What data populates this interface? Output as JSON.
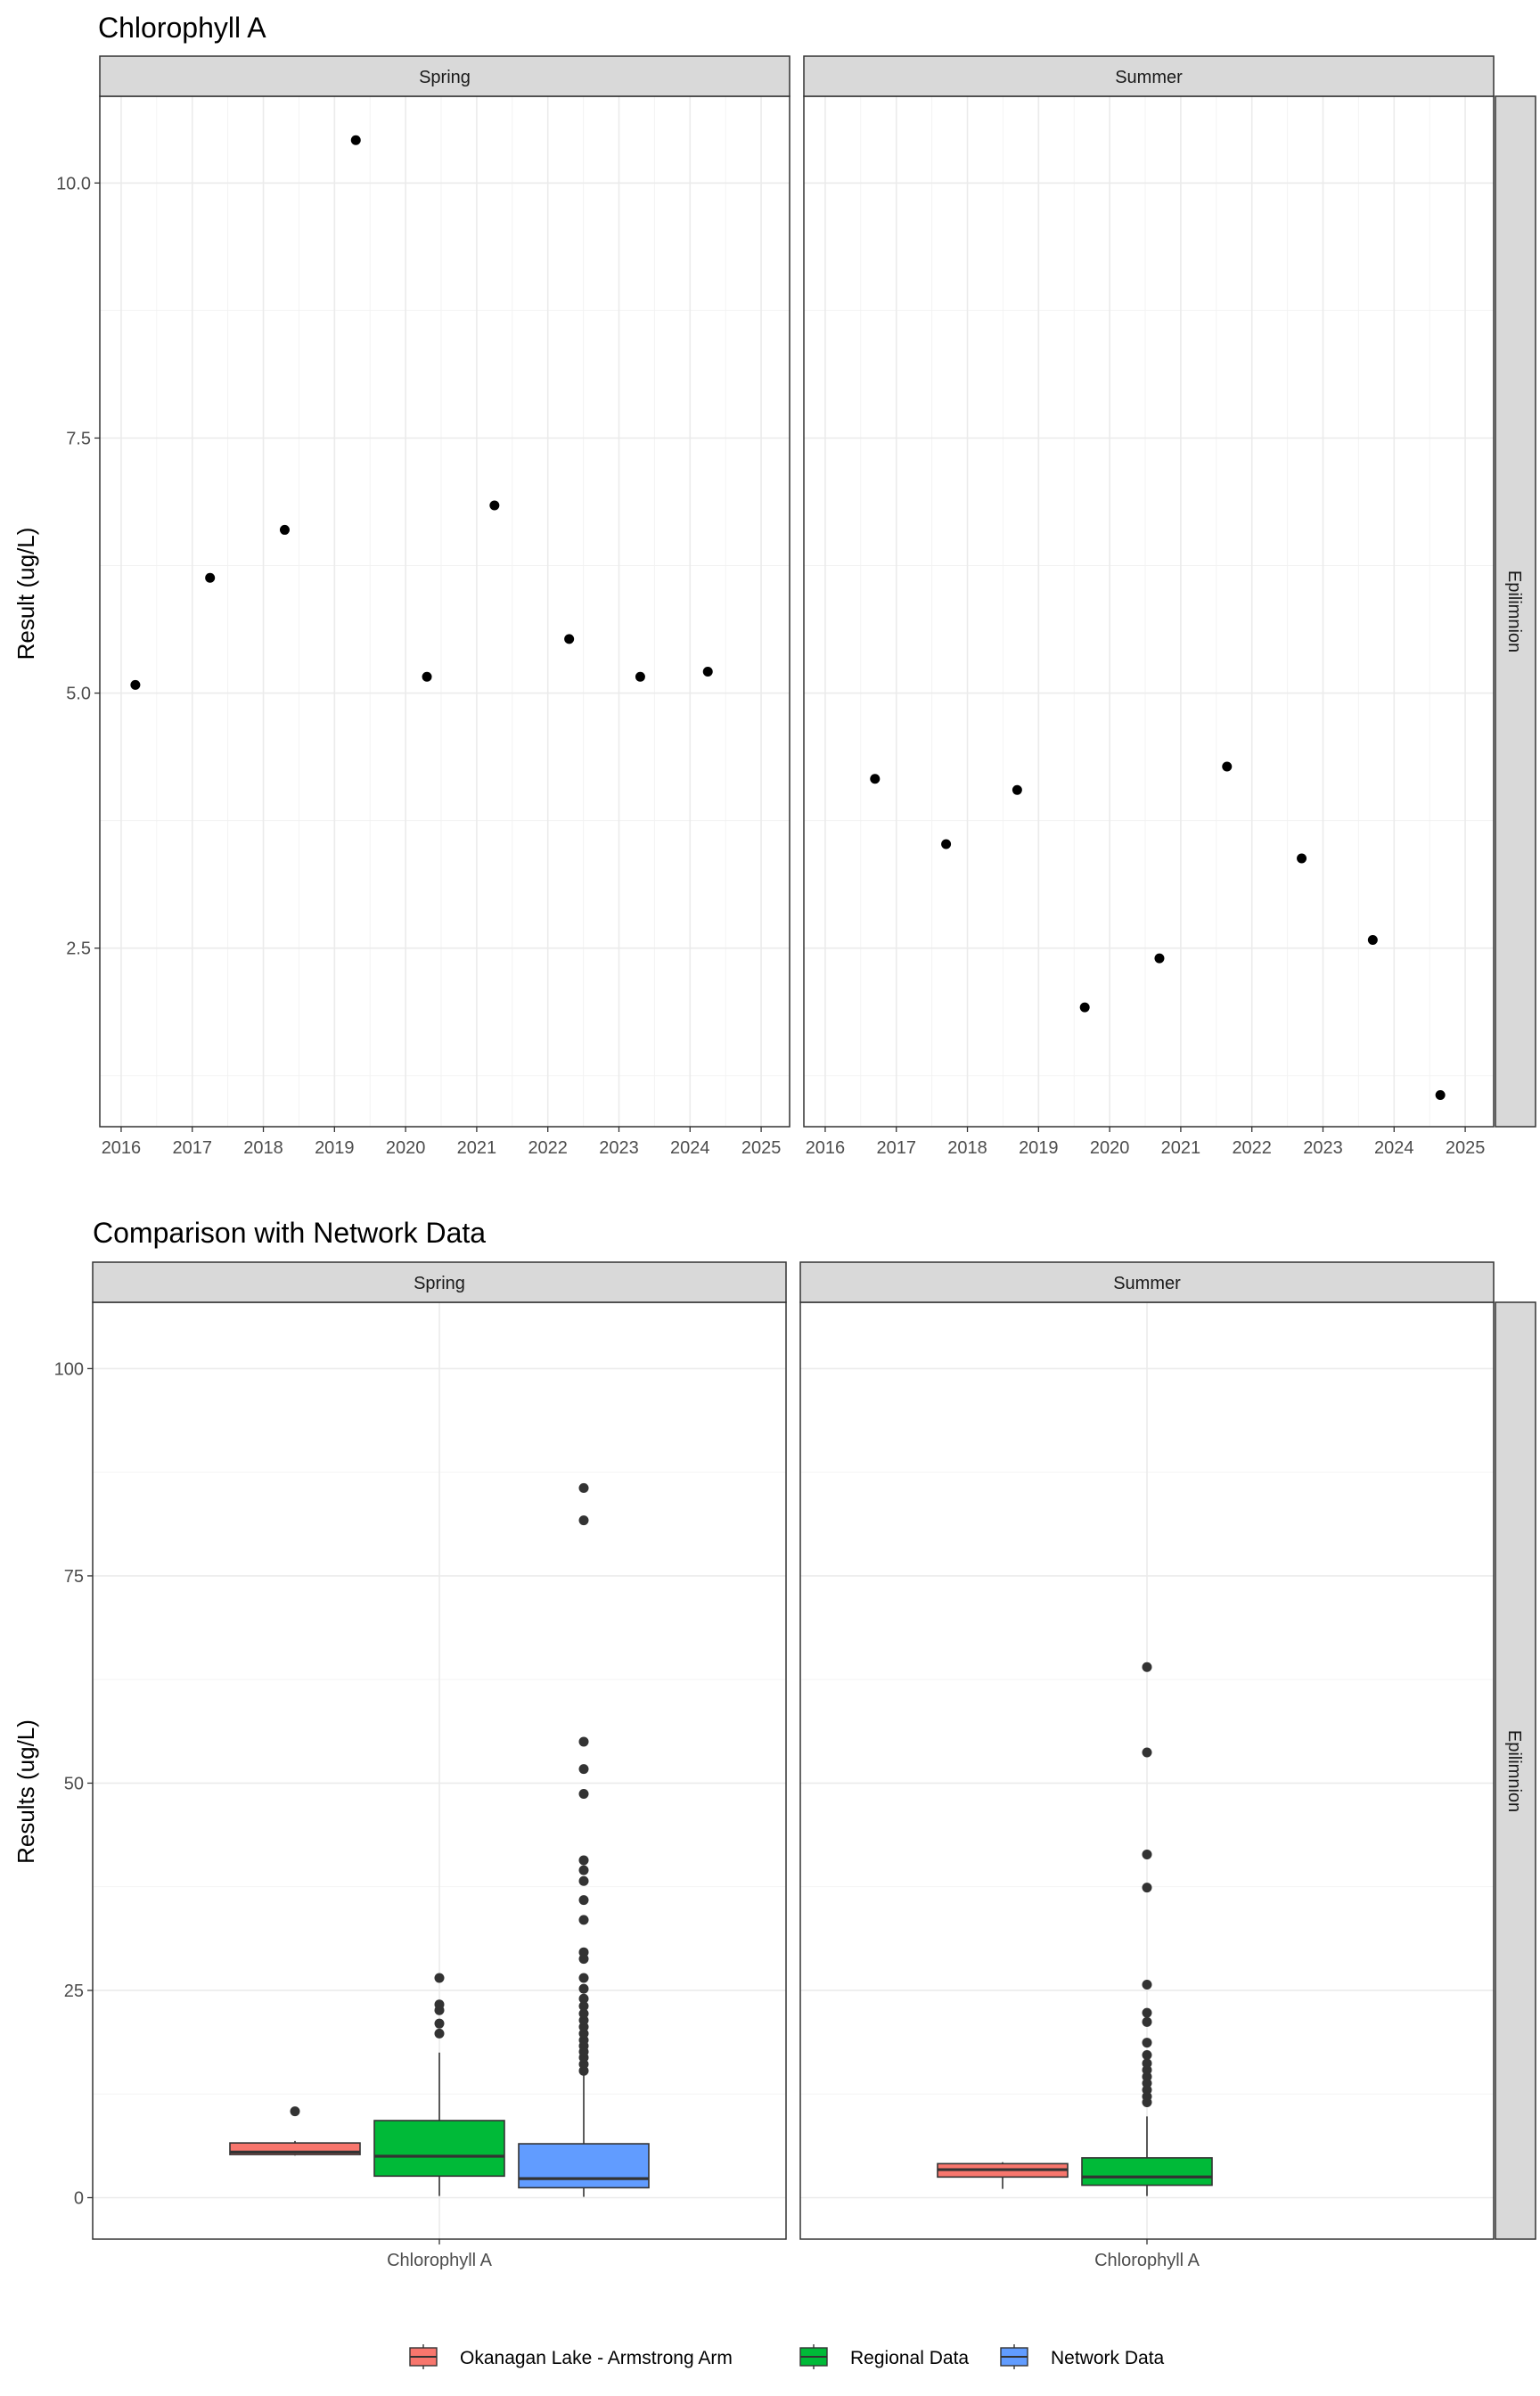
{
  "chart_data": [
    {
      "type": "scatter",
      "title": "Chlorophyll A",
      "ylabel": "Result (ug/L)",
      "xlabel": "",
      "ylim": [
        0.75,
        10.85
      ],
      "xlim": [
        2015.7,
        2025.4
      ],
      "yticks": [
        2.5,
        5.0,
        7.5,
        10.0
      ],
      "ytick_labels": [
        "2.5",
        "5.0",
        "7.5",
        "10.0"
      ],
      "xticks": [
        2016,
        2017,
        2018,
        2019,
        2020,
        2021,
        2022,
        2023,
        2024,
        2025
      ],
      "xtick_labels": [
        "2016",
        "2017",
        "2018",
        "2019",
        "2020",
        "2021",
        "2022",
        "2023",
        "2024",
        "2025"
      ],
      "row_strip": "Epilimnion",
      "grid": true,
      "panels": [
        {
          "strip": "Spring",
          "points": [
            {
              "x": 2016.2,
              "y": 5.08
            },
            {
              "x": 2017.25,
              "y": 6.13
            },
            {
              "x": 2018.3,
              "y": 6.6
            },
            {
              "x": 2019.3,
              "y": 10.42
            },
            {
              "x": 2020.3,
              "y": 5.16
            },
            {
              "x": 2021.25,
              "y": 6.84
            },
            {
              "x": 2022.3,
              "y": 5.53
            },
            {
              "x": 2023.3,
              "y": 5.16
            },
            {
              "x": 2024.25,
              "y": 5.21
            }
          ]
        },
        {
          "strip": "Summer",
          "points": [
            {
              "x": 2016.7,
              "y": 4.16
            },
            {
              "x": 2017.7,
              "y": 3.52
            },
            {
              "x": 2018.7,
              "y": 4.05
            },
            {
              "x": 2019.65,
              "y": 1.92
            },
            {
              "x": 2020.7,
              "y": 2.4
            },
            {
              "x": 2021.65,
              "y": 4.28
            },
            {
              "x": 2022.7,
              "y": 3.38
            },
            {
              "x": 2023.7,
              "y": 2.58
            },
            {
              "x": 2024.65,
              "y": 1.06
            }
          ]
        }
      ]
    },
    {
      "type": "box",
      "title": "Comparison with Network Data",
      "ylabel": "Results (ug/L)",
      "xlabel": "",
      "ylim": [
        -5,
        108
      ],
      "yticks": [
        0,
        25,
        50,
        75,
        100
      ],
      "ytick_labels": [
        "0",
        "25",
        "50",
        "75",
        "100"
      ],
      "category": "Chlorophyll A",
      "row_strip": "Epilimnion",
      "grid": true,
      "legend": {
        "position": "bottom",
        "entries": [
          {
            "name": "Okanagan Lake - Armstrong Arm",
            "color": "#f8766d"
          },
          {
            "name": "Regional Data",
            "color": "#00ba38"
          },
          {
            "name": "Network Data",
            "color": "#619cff"
          }
        ]
      },
      "panels": [
        {
          "strip": "Spring",
          "boxes": [
            {
              "series": "Okanagan Lake - Armstrong Arm",
              "whisker_low": 5.08,
              "q1": 5.2,
              "median": 5.5,
              "q3": 6.6,
              "whisker_high": 6.84,
              "outliers": [
                10.42
              ]
            },
            {
              "series": "Regional Data",
              "whisker_low": 0.2,
              "q1": 2.6,
              "median": 5.0,
              "q3": 9.3,
              "whisker_high": 17.5,
              "outliers": [
                19.8,
                21.0,
                22.6,
                23.3,
                26.5
              ]
            },
            {
              "series": "Network Data",
              "whisker_low": 0.1,
              "q1": 1.2,
              "median": 2.3,
              "q3": 6.5,
              "whisker_high": 14.8,
              "outliers": [
                15.3,
                16.1,
                16.9,
                17.6,
                18.3,
                19.0,
                19.8,
                20.6,
                21.4,
                22.2,
                23.1,
                24.0,
                25.2,
                26.5,
                28.8,
                29.6,
                33.5,
                35.9,
                38.2,
                39.5,
                40.7,
                48.7,
                51.7,
                55.0,
                81.7,
                85.6
              ]
            }
          ]
        },
        {
          "strip": "Summer",
          "boxes": [
            {
              "series": "Okanagan Lake - Armstrong Arm",
              "whisker_low": 1.06,
              "q1": 2.49,
              "median": 3.38,
              "q3": 4.1,
              "whisker_high": 4.28,
              "outliers": []
            },
            {
              "series": "Regional Data",
              "whisker_low": 0.2,
              "q1": 1.5,
              "median": 2.5,
              "q3": 4.8,
              "whisker_high": 9.8,
              "outliers": [
                11.5,
                12.2,
                13.0,
                13.8,
                14.6,
                15.4,
                16.2,
                17.2,
                18.7,
                21.2,
                22.3,
                25.7,
                37.4,
                41.4,
                53.7,
                64.0
              ]
            }
          ]
        }
      ]
    }
  ]
}
